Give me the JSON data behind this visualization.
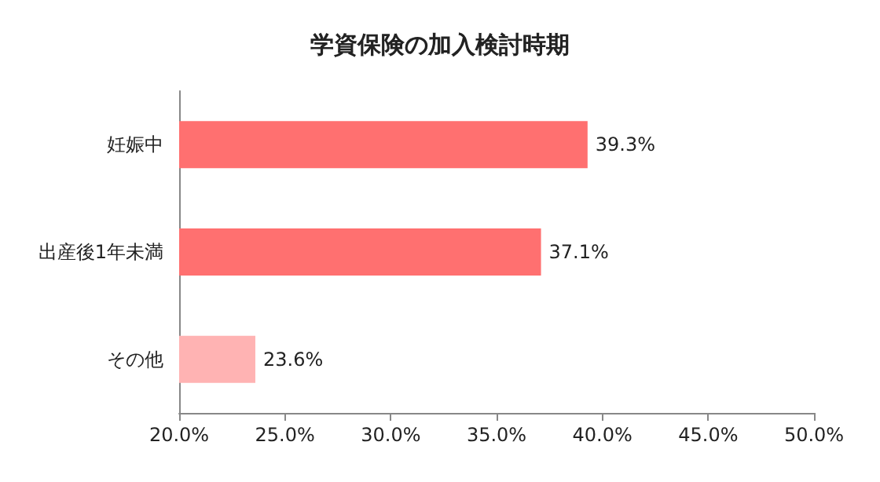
{
  "chart_data": {
    "type": "bar",
    "orientation": "horizontal",
    "title": "学資保険の加入検討時期",
    "categories": [
      "妊娠中",
      "出産後1年未満",
      "その他"
    ],
    "values": [
      39.3,
      37.1,
      23.6
    ],
    "colors": [
      "#ff7070",
      "#ff7070",
      "#ffb3b3"
    ],
    "value_labels": [
      "39.3%",
      "37.1%",
      "23.6%"
    ],
    "xlim": [
      20,
      50
    ],
    "xticks": [
      {
        "value": 20,
        "label": "20.0%"
      },
      {
        "value": 25,
        "label": "25.0%"
      },
      {
        "value": 30,
        "label": "30.0%"
      },
      {
        "value": 35,
        "label": "35.0%"
      },
      {
        "value": 40,
        "label": "40.0%"
      },
      {
        "value": 45,
        "label": "45.0%"
      },
      {
        "value": 50,
        "label": "50.0%"
      }
    ],
    "grid": false
  }
}
